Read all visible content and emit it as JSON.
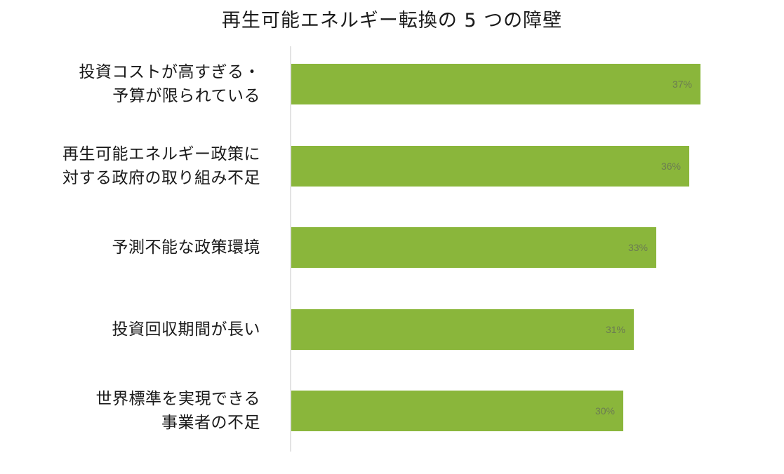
{
  "title": "再生可能エネルギー転換の 5 つの障壁",
  "chart_data": {
    "type": "bar",
    "orientation": "horizontal",
    "title": "再生可能エネルギー転換の 5 つの障壁",
    "categories": [
      "投資コストが高すぎる・\n予算が限られている",
      "再生可能エネルギー政策に\n対する政府の取り組み不足",
      "予測不能な政策環境",
      "投資回収期間が長い",
      "世界標準を実現できる\n事業者の不足"
    ],
    "values": [
      37,
      36,
      33,
      31,
      30
    ],
    "value_labels": [
      "37%",
      "36%",
      "33%",
      "31%",
      "30%"
    ],
    "unit": "%",
    "xlim": [
      0,
      37
    ],
    "grid": false,
    "legend": "none",
    "bar_color": "#8ab63b",
    "label_color": "#6b7b52"
  }
}
